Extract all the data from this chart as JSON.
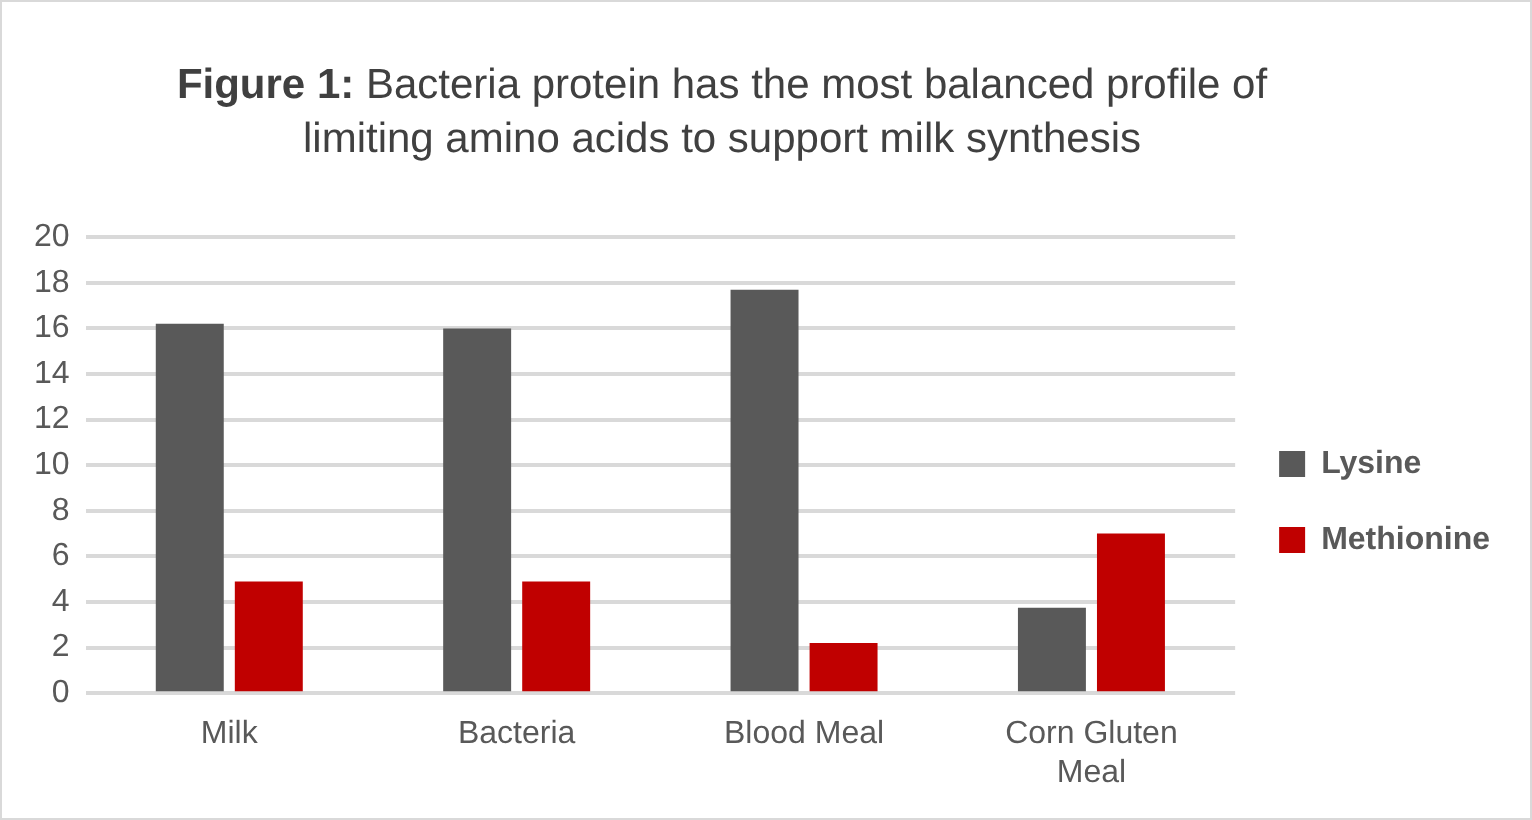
{
  "chart_data": {
    "type": "bar",
    "title": "Figure 1: Bacteria protein has the most balanced profile of limiting amino acids to support milk synthesis",
    "categories": [
      "Milk",
      "Bacteria",
      "Blood Meal",
      "Corn Gluten Meal"
    ],
    "series": [
      {
        "name": "Lysine",
        "color": "#595959",
        "values": [
          16.2,
          16.0,
          17.7,
          3.75
        ]
      },
      {
        "name": "Methionine",
        "color": "#c00000",
        "values": [
          4.9,
          4.9,
          2.2,
          7.0
        ]
      }
    ],
    "ylim": [
      0,
      20
    ],
    "yticks": [
      0,
      2,
      4,
      6,
      8,
      10,
      12,
      14,
      16,
      18,
      20
    ],
    "grid": "y",
    "legend": "right"
  }
}
